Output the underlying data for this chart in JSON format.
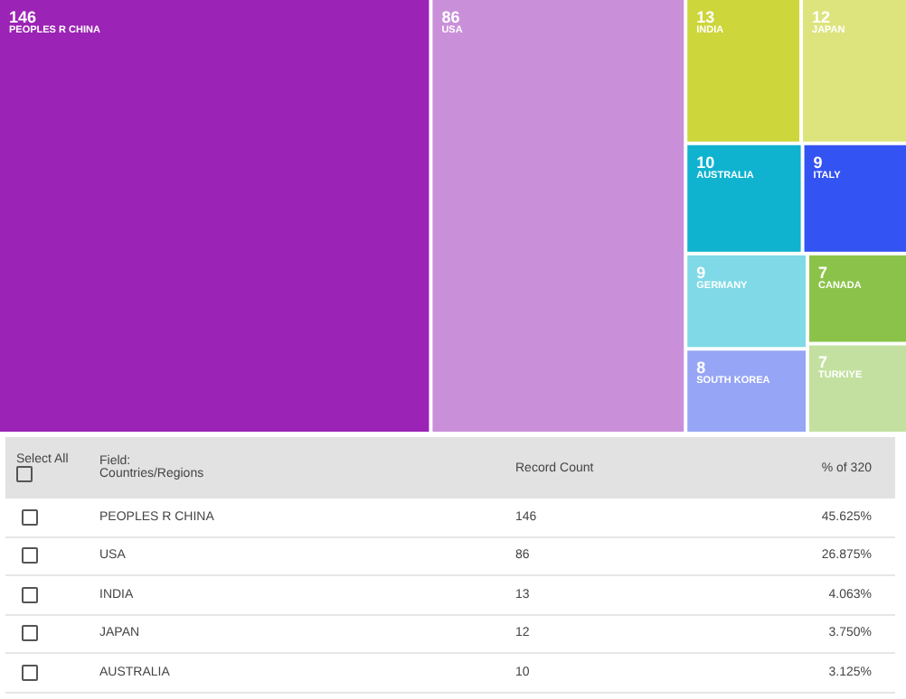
{
  "chart_data": [
    {
      "type": "other",
      "categories": [
        "PEOPLES R CHINA",
        "USA",
        "INDIA",
        "JAPAN",
        "AUSTRALIA",
        "GERMANY",
        "ITALY",
        "SOUTH KOREA",
        "TURKIYE",
        "CANADA"
      ],
      "values": [
        146,
        86,
        13,
        12,
        10,
        9,
        9,
        8,
        7,
        7
      ],
      "colors": [
        "#9b23b5",
        "#c98fd8",
        "#cdd63a",
        "#dde47e",
        "#0fb3cf",
        "#7fd9e6",
        "#3353f2",
        "#96a5f5",
        "#c3e0a0",
        "#8bc34a"
      ],
      "data_labels": true
    },
    {
      "type": "other",
      "annotations": [
        "Select All",
        "Field:",
        "Countries/Regions"
      ],
      "data_labels": true,
      "categories": [
        "PEOPLES R CHINA",
        "USA",
        "INDIA",
        "JAPAN",
        "AUSTRALIA"
      ],
      "series": [
        {
          "name": "Record Count",
          "values": [
            146,
            86,
            13,
            12,
            10
          ]
        },
        {
          "name": "% of 320",
          "values": [
            45.625,
            26.875,
            4.063,
            3.75,
            3.125
          ],
          "value_labels": [
            "45.625%",
            "26.875%",
            "4.063%",
            "3.750%",
            "3.125%"
          ]
        }
      ]
    }
  ]
}
